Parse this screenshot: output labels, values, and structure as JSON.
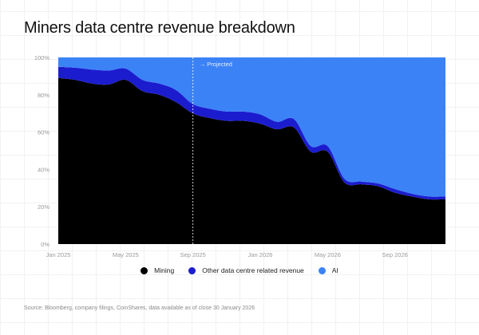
{
  "chart_data": {
    "type": "area",
    "stacked": true,
    "normalized": true,
    "title": "Miners data centre revenue breakdown",
    "x": [
      "Jan 2025",
      "Feb 2025",
      "Mar 2025",
      "Apr 2025",
      "May 2025",
      "Jun 2025",
      "Jul 2025",
      "Aug 2025",
      "Sep 2025",
      "Oct 2025",
      "Nov 2025",
      "Dec 2025",
      "Jan 2026",
      "Feb 2026",
      "Mar 2026",
      "Apr 2026",
      "May 2026",
      "Jun 2026",
      "Jul 2026",
      "Aug 2026",
      "Sep 2026",
      "Oct 2026",
      "Nov 2026",
      "Dec 2026"
    ],
    "x_ticks": [
      "Jan 2025",
      "May 2025",
      "Sep 2025",
      "Jan 2026",
      "May 2026",
      "Sep 2026"
    ],
    "y_ticks": [
      "0%",
      "20%",
      "40%",
      "60%",
      "80%",
      "100%"
    ],
    "ylim": [
      0,
      100
    ],
    "series": [
      {
        "name": "Mining",
        "color": "#000000",
        "values": [
          89,
          88,
          86,
          85.5,
          88,
          82,
          80,
          76,
          70,
          67.5,
          66,
          66,
          64.5,
          61.5,
          62.5,
          49.5,
          49.5,
          33,
          32,
          31,
          27.5,
          25.5,
          24,
          24
        ]
      },
      {
        "name": "Other data centre related revenue",
        "color": "#1c1ccf",
        "values": [
          6,
          6.5,
          7.5,
          7.5,
          6,
          6,
          6,
          6.5,
          5,
          5,
          5,
          5,
          5,
          4,
          4.5,
          3,
          3,
          2,
          1.5,
          1.5,
          2,
          1.5,
          1.5,
          1.5
        ]
      },
      {
        "name": "AI",
        "color": "#3b82f6",
        "values": [
          5,
          5.5,
          6.5,
          7,
          6,
          12,
          14,
          17.5,
          25,
          27.5,
          29,
          29,
          30.5,
          34.5,
          33,
          47.5,
          47.5,
          65,
          66.5,
          67.5,
          70.5,
          73,
          74.5,
          74.5
        ]
      }
    ],
    "annotation": {
      "label": "→ Projected",
      "at": "Sep 2025"
    },
    "legend_position": "bottom",
    "grid": false
  },
  "source": "Source: Bloomberg, company filings, CoinShares, data available as of close 30 January 2026"
}
